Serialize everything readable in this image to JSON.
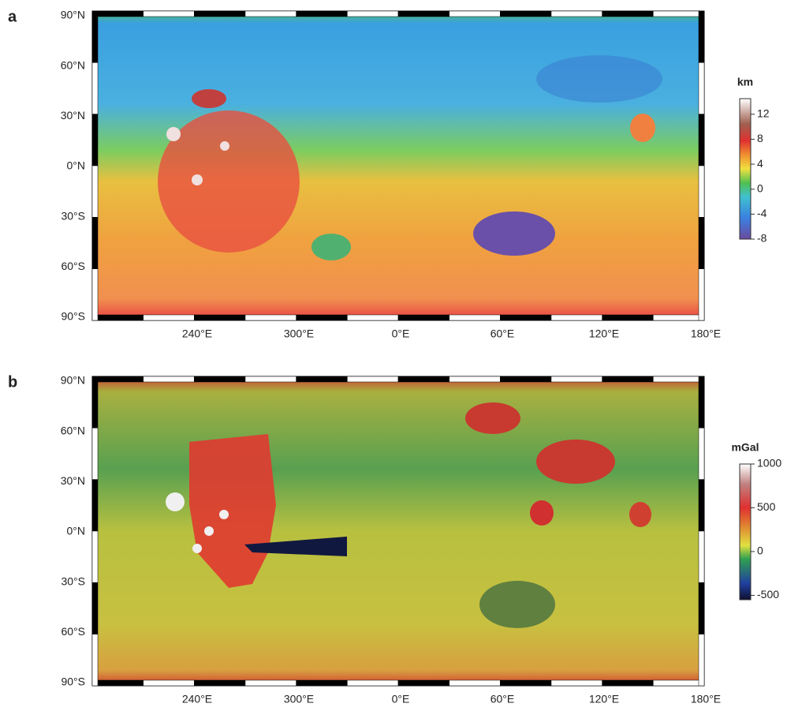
{
  "panels": [
    {
      "label": "a",
      "y_axis_labels": [
        "90°N",
        "60°N",
        "30°N",
        "0°N",
        "30°S",
        "60°S",
        "90°S"
      ],
      "x_axis_labels": [
        "240°E",
        "300°E",
        "0°E",
        "60°E",
        "120°E",
        "180°E"
      ],
      "colorbar": {
        "unit": "km",
        "range": [
          -8,
          14.5
        ],
        "ticks": [
          12,
          8,
          4,
          0,
          -4,
          -8
        ]
      }
    },
    {
      "label": "b",
      "y_axis_labels": [
        "90°N",
        "60°N",
        "30°N",
        "0°N",
        "30°S",
        "60°S",
        "90°S"
      ],
      "x_axis_labels": [
        "240°E",
        "300°E",
        "0°E",
        "60°E",
        "120°E",
        "180°E"
      ],
      "colorbar": {
        "unit": "mGal",
        "range": [
          -550,
          1000
        ],
        "ticks": [
          1000,
          500,
          0,
          -500
        ]
      }
    }
  ]
}
